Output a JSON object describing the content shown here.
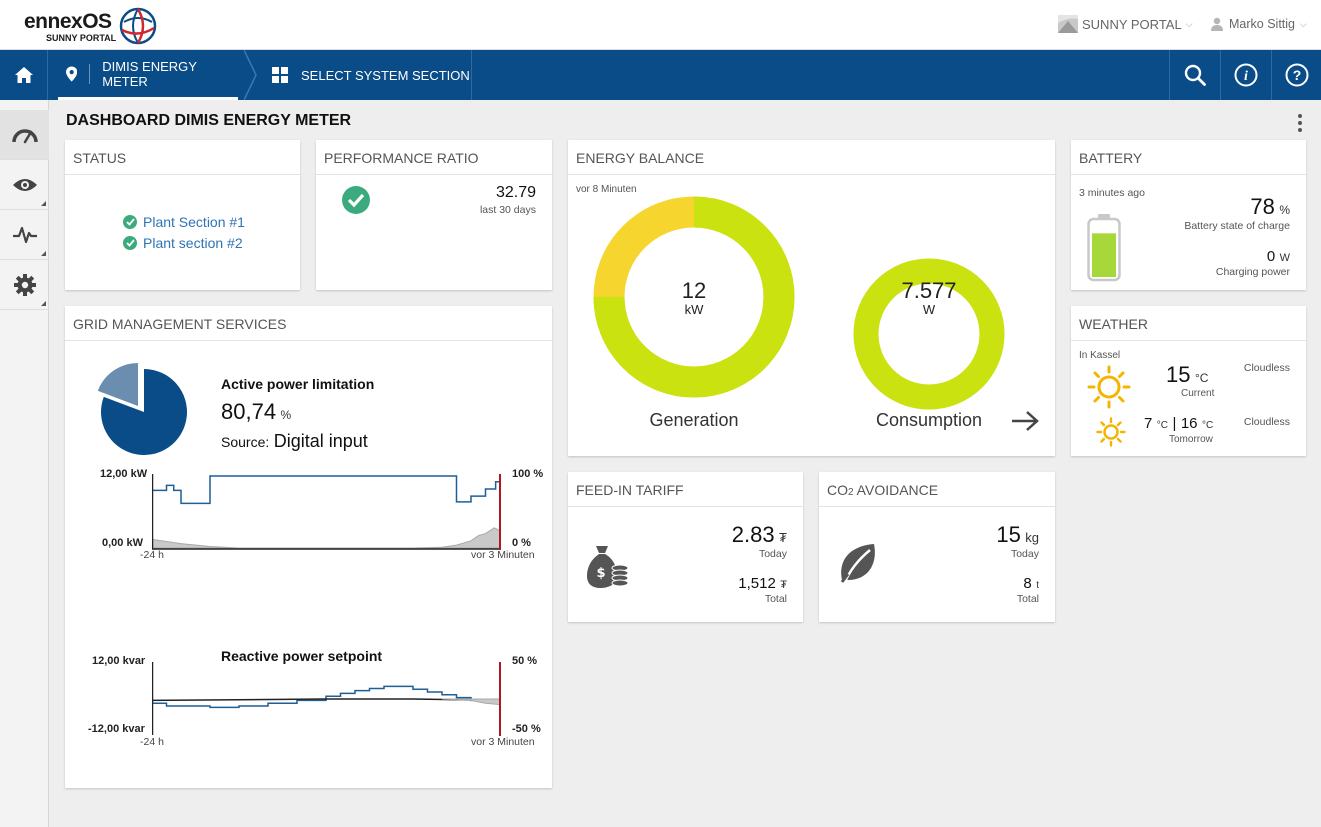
{
  "header": {
    "logo_main": "ennexOS",
    "logo_sub": "SUNNY PORTAL",
    "portal_switch": "SUNNY PORTAL",
    "user_name": "Marko Sittig"
  },
  "nav": {
    "breadcrumb_location": "DIMIS ENERGY METER",
    "breadcrumb_section": "SELECT SYSTEM SECTION"
  },
  "page": {
    "title": "DASHBOARD DIMIS ENERGY METER"
  },
  "status": {
    "title": "STATUS",
    "items": [
      "Plant Section #1",
      "Plant section #2"
    ]
  },
  "performance": {
    "title": "PERFORMANCE RATIO",
    "value": "32.79",
    "period": "last 30 days"
  },
  "energy_balance": {
    "title": "ENERGY BALANCE",
    "timestamp": "vor 8 Minuten",
    "generation_value": "12",
    "generation_unit": "kW",
    "generation_label": "Generation",
    "generation_share_pct": 75,
    "consumption_value": "7.577",
    "consumption_unit": "W",
    "consumption_label": "Consumption",
    "consumption_share_pct": 100
  },
  "battery": {
    "title": "BATTERY",
    "timestamp": "3 minutes ago",
    "soc_value": "78",
    "soc_unit": "%",
    "soc_label": "Battery state of charge",
    "soc_fraction": 0.78,
    "charging_value": "0",
    "charging_unit": "W",
    "charging_label": "Charging power"
  },
  "weather": {
    "title": "WEATHER",
    "location": "In Kassel",
    "current_temp": "15",
    "current_unit": "°C",
    "current_label": "Current",
    "current_condition": "Cloudless",
    "tomorrow_min": "7",
    "tomorrow_max": "16",
    "tomorrow_unit": "°C",
    "tomorrow_sep": "|",
    "tomorrow_label": "Tomorrow",
    "tomorrow_condition": "Cloudless"
  },
  "grid": {
    "title": "GRID MANAGEMENT SERVICES",
    "apl_title": "Active power limitation",
    "apl_value": "80,74",
    "apl_unit": "%",
    "apl_source_prefix": "Source:",
    "apl_source": "Digital input",
    "apl_fraction": 0.8074,
    "rps_title": "Reactive power setpoint"
  },
  "feed_in": {
    "title": "FEED-IN TARIFF",
    "today_value": "2.83",
    "today_currency": "₮",
    "today_label": "Today",
    "total_value": "1,512",
    "total_currency": "₮",
    "total_label": "Total"
  },
  "co2": {
    "title_pre": "CO",
    "title_sub": "2",
    "title_post": " AVOIDANCE",
    "today_value": "15",
    "today_unit": "kg",
    "today_label": "Today",
    "total_value": "8",
    "total_unit": "t",
    "total_label": "Total"
  },
  "chart_data": [
    {
      "type": "line",
      "title": "Active power limitation",
      "x_start_label": "-24 h",
      "x_end_label": "vor 3 Minuten",
      "y_left_labels": [
        "12,00 kW",
        "0,00 kW"
      ],
      "y_right_labels": [
        "100 %",
        "0 %"
      ],
      "ylim_left_kw": [
        0,
        12
      ],
      "ylim_right_pct": [
        0,
        100
      ],
      "x_hours": [
        -24,
        0
      ],
      "series": [
        {
          "name": "power limitation",
          "color": "#1f5f95",
          "step": true,
          "x": [
            -24,
            -23,
            -22.5,
            -22,
            -20,
            -4,
            -3,
            -2,
            -1.6,
            -1,
            -0.3,
            0
          ],
          "pct": [
            80,
            87,
            80,
            62,
            100,
            100,
            64,
            72,
            72,
            82,
            92,
            92
          ]
        },
        {
          "name": "generation",
          "color": "#a8a8a8",
          "x": [
            -24,
            -22,
            -20,
            -18,
            -14,
            -10,
            -6,
            -4,
            -3,
            -2,
            -1.5,
            -1,
            -0.4,
            0
          ],
          "pct": [
            12,
            6,
            2,
            0,
            0,
            0,
            0,
            1,
            4,
            10,
            17,
            20,
            28,
            24
          ]
        }
      ]
    },
    {
      "type": "line",
      "title": "Reactive power setpoint",
      "x_start_label": "-24 h",
      "x_end_label": "vor 3 Minuten",
      "y_left_labels": [
        "12,00 kvar",
        "-12,00 kvar"
      ],
      "y_right_labels": [
        "50 %",
        "-50 %"
      ],
      "ylim_left_kvar": [
        -12,
        12
      ],
      "ylim_right_pct": [
        -50,
        50
      ],
      "x_hours": [
        -24,
        0
      ],
      "series": [
        {
          "name": "setpoint",
          "color": "#1f5f95",
          "step": true,
          "x": [
            -24,
            -23,
            -20,
            -18,
            -16,
            -14,
            -12,
            -11,
            -10,
            -9,
            -8,
            -7,
            -6,
            -5,
            -4,
            -3,
            -2,
            -1,
            0
          ],
          "pct": [
            -6,
            -10,
            -12,
            -10,
            -6,
            -2,
            4,
            8,
            12,
            15,
            18,
            18,
            14,
            10,
            6,
            2,
            -2,
            -4,
            -6
          ]
        },
        {
          "name": "reference",
          "color": "#222222",
          "x": [
            -24,
            -12,
            -6,
            0
          ],
          "pct": [
            -2,
            0,
            0,
            -2
          ]
        },
        {
          "name": "measured",
          "color": "#a8a8a8",
          "x": [
            -4,
            -2,
            -1,
            0
          ],
          "pct": [
            0,
            -2,
            -6,
            -8
          ]
        }
      ]
    }
  ]
}
